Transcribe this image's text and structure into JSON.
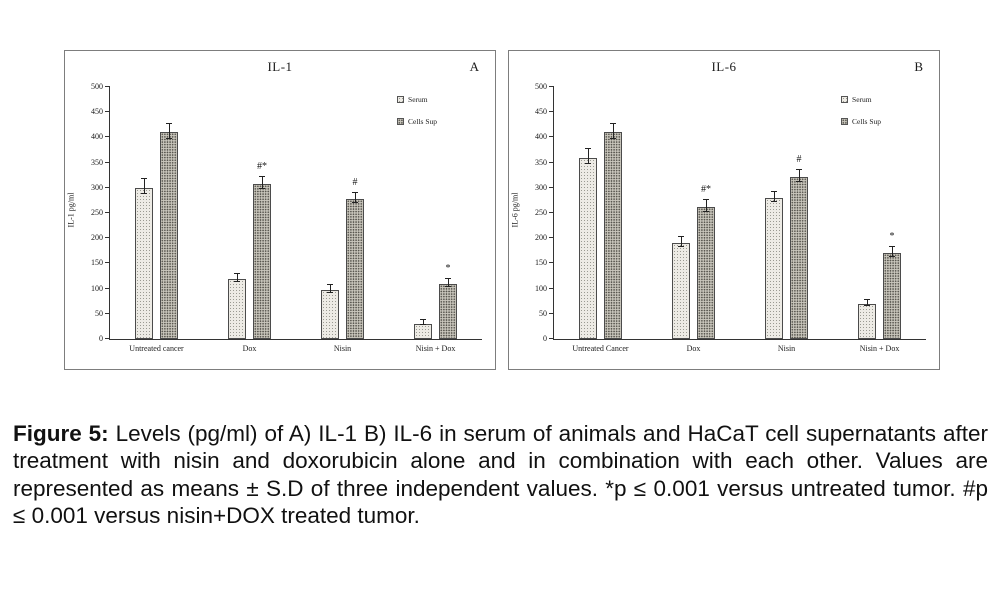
{
  "caption": {
    "label": "Figure 5:",
    "text": " Levels (pg/ml) of A) IL-1 B) IL-6 in serum of animals and HaCaT cell supernatants after treatment with nisin and doxorubicin alone and in combination with each other. Values are represented as means ± S.D of three independent values. *p ≤ 0.001 versus untreated tumor.  #p ≤ 0.001 versus nisin+DOX treated tumor."
  },
  "colors": {
    "serum_fill": "#edebe5",
    "cells_sup_fill": "#c9c6bc",
    "axis": "#333333",
    "panel_border": "#7d7d7d"
  },
  "chart_data": [
    {
      "type": "bar",
      "title": "IL-1",
      "panel_label": "A",
      "ylabel": "IL-1 pg/ml",
      "xlabel": "",
      "ylim": [
        0,
        500
      ],
      "ytick_step": 50,
      "grid": false,
      "legend_position": "upper-right",
      "categories": [
        "Untreated cancer",
        "Dox",
        "Nisin",
        "Nisin + Dox"
      ],
      "legend": [
        "Serum",
        "Cells Sup"
      ],
      "series": [
        {
          "name": "Serum",
          "values": [
            300,
            120,
            97,
            30
          ],
          "errors": [
            15,
            8,
            8,
            5
          ]
        },
        {
          "name": "Cells Sup",
          "values": [
            410,
            308,
            278,
            110
          ],
          "errors": [
            15,
            12,
            10,
            8
          ]
        }
      ],
      "annotations": [
        "",
        "#*",
        "#",
        "*"
      ]
    },
    {
      "type": "bar",
      "title": "IL-6",
      "panel_label": "B",
      "ylabel": "IL-6 pg/ml",
      "xlabel": "",
      "ylim": [
        0,
        500
      ],
      "ytick_step": 50,
      "grid": false,
      "legend_position": "upper-right",
      "categories": [
        "Untreated Cancer",
        "Dox",
        "Nisin",
        "Nisin + Dox"
      ],
      "legend": [
        "Serum",
        "Cells Sup"
      ],
      "series": [
        {
          "name": "Serum",
          "values": [
            360,
            190,
            280,
            70
          ],
          "errors": [
            15,
            10,
            10,
            6
          ]
        },
        {
          "name": "Cells Sup",
          "values": [
            410,
            262,
            322,
            170
          ],
          "errors": [
            15,
            12,
            12,
            10
          ]
        }
      ],
      "annotations": [
        "",
        "#*",
        "#",
        "*"
      ]
    }
  ]
}
